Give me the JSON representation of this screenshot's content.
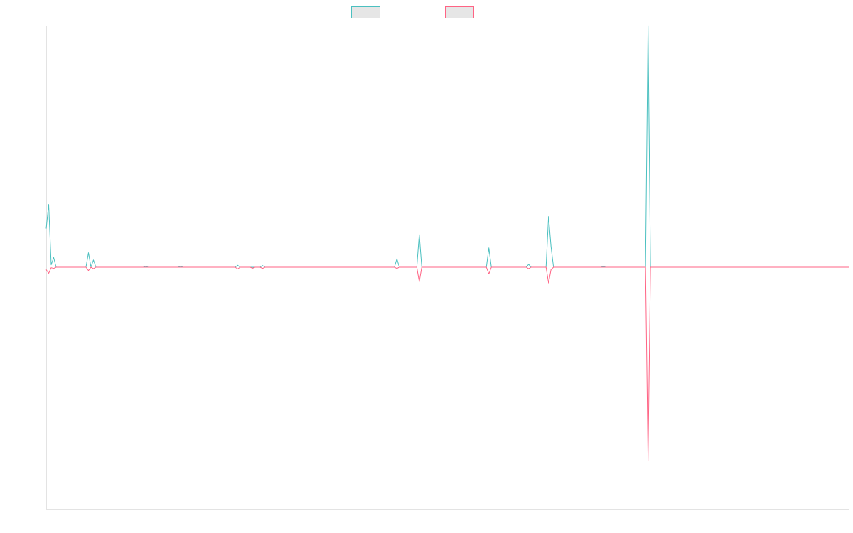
{
  "chart_data": {
    "type": "line",
    "title": "",
    "xlabel": "",
    "ylabel": "",
    "grid": false,
    "legend_placement": "top-center",
    "ylim": [
      -1,
      1
    ],
    "colors": {
      "teal": "#4bc0c0",
      "pink": "#ff6384",
      "swatch_fill": "#e6e6e6",
      "axis": "#e3e3e3"
    },
    "series": [
      {
        "color": "#4bc0c0",
        "points": [
          [
            0,
            0.16
          ],
          [
            1,
            0.26
          ],
          [
            2,
            0.01
          ],
          [
            3,
            0.04
          ],
          [
            4,
            0.0
          ],
          [
            16,
            0.0
          ],
          [
            17,
            0.06
          ],
          [
            18,
            0.0
          ],
          [
            19,
            0.03
          ],
          [
            20,
            0.0
          ],
          [
            39,
            0.0
          ],
          [
            40,
            0.004
          ],
          [
            41,
            0.0
          ],
          [
            53,
            0.0
          ],
          [
            54,
            0.004
          ],
          [
            55,
            0.0
          ],
          [
            76,
            0.0
          ],
          [
            77,
            0.008
          ],
          [
            78,
            0.0
          ],
          [
            86,
            0.0
          ],
          [
            87,
            0.007
          ],
          [
            88,
            0.0
          ],
          [
            140,
            0.0
          ],
          [
            141,
            0.035
          ],
          [
            142,
            0.0
          ],
          [
            149,
            0.0
          ],
          [
            150,
            0.135
          ],
          [
            151,
            0.0
          ],
          [
            177,
            0.0
          ],
          [
            178,
            0.08
          ],
          [
            179,
            0.0
          ],
          [
            193,
            0.0
          ],
          [
            194,
            0.012
          ],
          [
            195,
            0.0
          ],
          [
            201,
            0.0
          ],
          [
            202,
            0.21
          ],
          [
            203,
            0.085
          ],
          [
            204,
            0.0
          ],
          [
            223,
            0.0
          ],
          [
            224,
            0.003
          ],
          [
            225,
            0.0
          ],
          [
            241,
            0.0
          ],
          [
            242,
            1.0
          ],
          [
            243,
            0.0
          ],
          [
            323,
            0.0
          ]
        ]
      },
      {
        "color": "#ff6384",
        "points": [
          [
            0,
            -0.01
          ],
          [
            1,
            -0.025
          ],
          [
            2,
            -0.002
          ],
          [
            3,
            -0.005
          ],
          [
            4,
            0.0
          ],
          [
            16,
            0.0
          ],
          [
            17,
            -0.014
          ],
          [
            18,
            0.0
          ],
          [
            19,
            -0.006
          ],
          [
            20,
            0.0
          ],
          [
            76,
            0.0
          ],
          [
            77,
            -0.007
          ],
          [
            78,
            0.0
          ],
          [
            82,
            0.0
          ],
          [
            83,
            -0.004
          ],
          [
            84,
            0.0
          ],
          [
            86,
            0.0
          ],
          [
            87,
            -0.005
          ],
          [
            88,
            0.0
          ],
          [
            140,
            0.0
          ],
          [
            141,
            -0.005
          ],
          [
            142,
            0.0
          ],
          [
            149,
            0.0
          ],
          [
            150,
            -0.06
          ],
          [
            151,
            0.0
          ],
          [
            177,
            0.0
          ],
          [
            178,
            -0.028
          ],
          [
            179,
            0.0
          ],
          [
            193,
            0.0
          ],
          [
            194,
            -0.006
          ],
          [
            195,
            0.0
          ],
          [
            201,
            0.0
          ],
          [
            202,
            -0.065
          ],
          [
            203,
            -0.01
          ],
          [
            204,
            0.0
          ],
          [
            241,
            0.0
          ],
          [
            242,
            -0.8
          ],
          [
            243,
            0.0
          ],
          [
            323,
            0.0
          ]
        ]
      }
    ]
  }
}
